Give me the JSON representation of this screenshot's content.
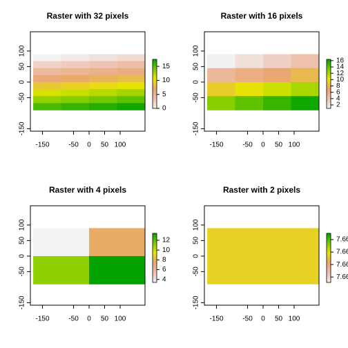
{
  "chart_data": [
    {
      "type": "raster",
      "title": "Raster with 32 pixels",
      "ncol": 4,
      "nrow": 8,
      "extent": [
        -180,
        180,
        -90,
        90
      ],
      "values": [
        0,
        0.55,
        1.1,
        1.65,
        2.2,
        2.75,
        3.3,
        3.85,
        4.4,
        4.95,
        5.5,
        6.05,
        6.6,
        7.15,
        7.7,
        8.25,
        8.8,
        9.35,
        9.9,
        10.45,
        11,
        11.55,
        12.1,
        12.65,
        13.2,
        13.75,
        14.3,
        14.85,
        15.4,
        15.95,
        16.5,
        17.05
      ],
      "xlim": [
        -189,
        180
      ],
      "ylim": [
        -158,
        162
      ],
      "xticks": [
        -150,
        -50,
        0,
        50,
        100
      ],
      "yticks": [
        -150,
        -50,
        0,
        50,
        100
      ],
      "zlim": [
        0,
        17.5
      ],
      "zticks": [
        0,
        5,
        10,
        15
      ],
      "colors": [
        "#F2F2F2",
        "#EEC0AE",
        "#E9A670",
        "#E6E600",
        "#7CCB00",
        "#00A300"
      ]
    },
    {
      "type": "raster",
      "title": "Raster with 16 pixels",
      "ncol": 4,
      "nrow": 4,
      "extent": [
        -180,
        180,
        -90,
        90
      ],
      "values": [
        1,
        2,
        3,
        4,
        5,
        6,
        7,
        8,
        9,
        10,
        11,
        12,
        13,
        14,
        15,
        16
      ],
      "xlim": [
        -189,
        180
      ],
      "ylim": [
        -158,
        162
      ],
      "xticks": [
        -150,
        -50,
        0,
        50,
        100
      ],
      "yticks": [
        -150,
        -50,
        0,
        50,
        100
      ],
      "zlim": [
        0.9,
        16.4
      ],
      "zticks": [
        2,
        4,
        6,
        8,
        10,
        12,
        14,
        16
      ],
      "colors": [
        "#F2F2F2",
        "#EEC0AE",
        "#E9A670",
        "#E6E600",
        "#7CCB00",
        "#00A300"
      ]
    },
    {
      "type": "raster",
      "title": "Raster with 4 pixels",
      "ncol": 2,
      "nrow": 2,
      "extent": [
        -180,
        180,
        -90,
        90
      ],
      "values": [
        3.4,
        7.6,
        11,
        13.4
      ],
      "xlim": [
        -189,
        180
      ],
      "ylim": [
        -158,
        162
      ],
      "xticks": [
        -150,
        -50,
        0,
        50,
        100
      ],
      "yticks": [
        -150,
        -50,
        0,
        50,
        100
      ],
      "zlim": [
        3.4,
        13.4
      ],
      "zticks": [
        4,
        6,
        8,
        10,
        12
      ],
      "colors": [
        "#F2F2F2",
        "#EEC0AE",
        "#E9A670",
        "#E6E600",
        "#7CCB00",
        "#00A300"
      ]
    },
    {
      "type": "raster",
      "title": "Raster with 2 pixels",
      "ncol": 2,
      "nrow": 1,
      "extent": [
        -180,
        180,
        -90,
        90
      ],
      "values": [
        7.66,
        7.66
      ],
      "xlim": [
        -189,
        180
      ],
      "ylim": [
        -158,
        162
      ],
      "xticks": [
        -150,
        -50,
        0,
        50,
        100
      ],
      "yticks": [
        -150,
        -50,
        0,
        50,
        100
      ],
      "zlim": [
        7.6537,
        7.6655
      ],
      "zticks": [
        {
          "value": 7.655,
          "label": "7.66"
        },
        {
          "value": 7.658,
          "label": "7.66"
        },
        {
          "value": 7.661,
          "label": "7.66"
        },
        {
          "value": 7.664,
          "label": "7.66"
        }
      ],
      "colors": [
        "#F2F2F2",
        "#EEC0AE",
        "#E9A670",
        "#E6E600",
        "#7CCB00",
        "#00A300"
      ]
    }
  ]
}
